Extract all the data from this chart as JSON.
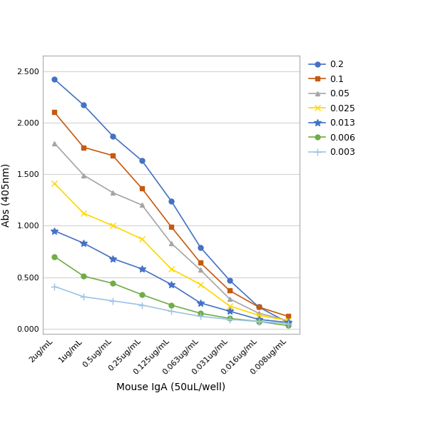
{
  "x_labels": [
    "2ug/mL",
    "1ug/mL",
    "0.5ug/mL",
    "0.25ug/mL",
    "0.125ug/mL",
    "0.063ug/mL",
    "0.031ug/mL",
    "0.016ug/mL",
    "0.008ug/mL"
  ],
  "xlabel": "Mouse IgA (50uL/well)",
  "ylabel": "Abs (405nm)",
  "ylim": [
    -0.05,
    2.65
  ],
  "yticks": [
    0.0,
    0.5,
    1.0,
    1.5,
    2.0,
    2.5
  ],
  "ytick_labels": [
    "0.000",
    "0.500",
    "1.000",
    "1.500",
    "2.000",
    "2.500"
  ],
  "series": [
    {
      "label": "0.2",
      "color": "#4472C4",
      "marker": "o",
      "markersize": 5,
      "markerfacecolor": "#4472C4",
      "linestyle": "-",
      "values": [
        2.42,
        2.17,
        1.87,
        1.63,
        1.24,
        0.79,
        0.47,
        0.21,
        0.06
      ]
    },
    {
      "label": "0.1",
      "color": "#C55A11",
      "marker": "s",
      "markersize": 5,
      "markerfacecolor": "#C55A11",
      "linestyle": "-",
      "values": [
        2.1,
        1.76,
        1.68,
        1.36,
        0.99,
        0.64,
        0.37,
        0.21,
        0.12
      ]
    },
    {
      "label": "0.05",
      "color": "#A5A5A5",
      "marker": "^",
      "markersize": 5,
      "markerfacecolor": "#A5A5A5",
      "linestyle": "-",
      "values": [
        1.8,
        1.49,
        1.32,
        1.2,
        0.83,
        0.57,
        0.29,
        0.15,
        0.08
      ]
    },
    {
      "label": "0.025",
      "color": "#FFD700",
      "marker": "x",
      "markersize": 6,
      "markerfacecolor": "#FFD700",
      "linestyle": "-",
      "values": [
        1.41,
        1.12,
        1.0,
        0.87,
        0.58,
        0.43,
        0.22,
        0.13,
        0.08
      ]
    },
    {
      "label": "0.013",
      "color": "#4472C4",
      "marker": "*",
      "markersize": 7,
      "markerfacecolor": "#4472C4",
      "linestyle": "-",
      "values": [
        0.95,
        0.83,
        0.68,
        0.58,
        0.43,
        0.25,
        0.17,
        0.09,
        0.06
      ]
    },
    {
      "label": "0.006",
      "color": "#70AD47",
      "marker": "o",
      "markersize": 5,
      "markerfacecolor": "#70AD47",
      "linestyle": "-",
      "values": [
        0.7,
        0.51,
        0.44,
        0.33,
        0.23,
        0.15,
        0.1,
        0.07,
        0.03
      ]
    },
    {
      "label": "0.003",
      "color": "#9DC3E6",
      "marker": "+",
      "markersize": 7,
      "markerfacecolor": "#9DC3E6",
      "linestyle": "-",
      "values": [
        0.41,
        0.31,
        0.27,
        0.23,
        0.17,
        0.12,
        0.09,
        0.07,
        0.05
      ]
    }
  ],
  "background_color": "#FFFFFF",
  "plot_bg_color": "#FFFFFF",
  "grid_color": "#D3D3D3",
  "axis_label_fontsize": 10,
  "tick_fontsize": 8,
  "legend_fontsize": 9
}
